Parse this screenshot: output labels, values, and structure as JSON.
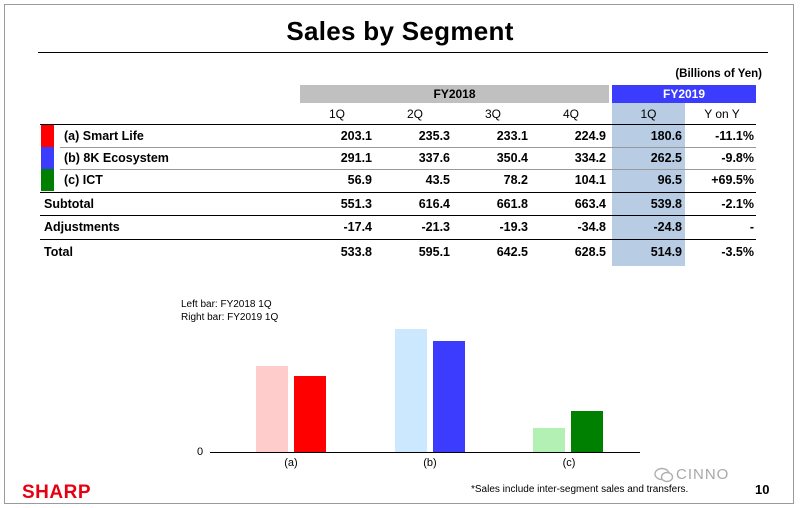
{
  "title": "Sales by Segment",
  "units": "(Billions of Yen)",
  "headers": {
    "fy2018": "FY2018",
    "fy2019": "FY2019",
    "cols": [
      "1Q",
      "2Q",
      "3Q",
      "4Q",
      "1Q",
      "Y on Y"
    ]
  },
  "rows": [
    {
      "label": "(a) Smart Life",
      "color": "#ff0000",
      "values": [
        "203.1",
        "235.3",
        "233.1",
        "224.9",
        "180.6",
        "-11.1%"
      ]
    },
    {
      "label": "(b) 8K Ecosystem",
      "color": "#3c3cff",
      "values": [
        "291.1",
        "337.6",
        "350.4",
        "334.2",
        "262.5",
        "-9.8%"
      ]
    },
    {
      "label": "(c) ICT",
      "color": "#008000",
      "values": [
        "56.9",
        "43.5",
        "78.2",
        "104.1",
        "96.5",
        "+69.5%"
      ]
    },
    {
      "label": "Subtotal",
      "color": "",
      "values": [
        "551.3",
        "616.4",
        "661.8",
        "663.4",
        "539.8",
        "-2.1%"
      ]
    },
    {
      "label": "Adjustments",
      "color": "",
      "values": [
        "-17.4",
        "-21.3",
        "-19.3",
        "-34.8",
        "-24.8",
        "-"
      ]
    },
    {
      "label": "Total",
      "color": "",
      "values": [
        "533.8",
        "595.1",
        "642.5",
        "628.5",
        "514.9",
        "-3.5%"
      ]
    }
  ],
  "legend": {
    "left": "Left bar: FY2018 1Q",
    "right": "Right bar: FY2019 1Q"
  },
  "chart_data": {
    "type": "bar",
    "categories": [
      "(a)",
      "(b)",
      "(c)"
    ],
    "series": [
      {
        "name": "FY2018 1Q",
        "values": [
          203.1,
          291.1,
          56.9
        ],
        "colors": [
          "#ffcccc",
          "#cce8ff",
          "#b3f0b3"
        ]
      },
      {
        "name": "FY2019 1Q",
        "values": [
          180.6,
          262.5,
          96.5
        ],
        "colors": [
          "#ff0000",
          "#3c3cff",
          "#008000"
        ]
      }
    ],
    "ylim": [
      0,
      320
    ],
    "ytick": "0"
  },
  "footer": {
    "logo": "SHARP",
    "footnote": "*Sales include inter-segment sales and transfers.",
    "page": "10",
    "watermark": "CINNO"
  }
}
